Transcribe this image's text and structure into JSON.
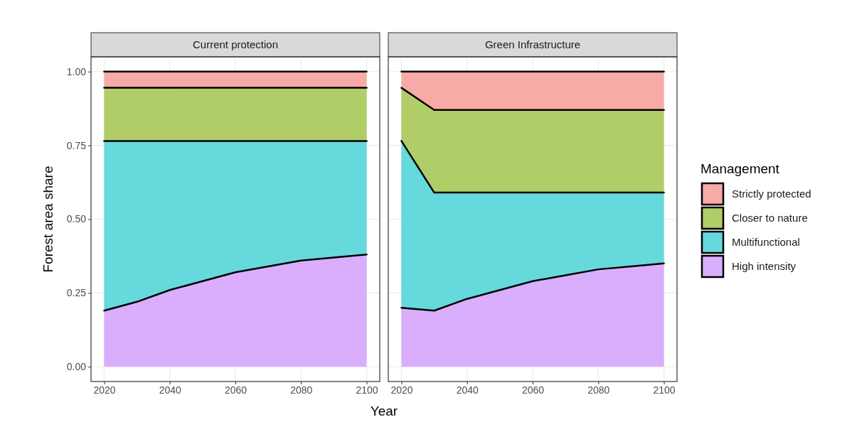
{
  "chart_data": [
    {
      "type": "area",
      "title": "Current protection",
      "xlabel": "Year",
      "ylabel": "Forest area share",
      "stacked": true,
      "x": [
        2020,
        2030,
        2040,
        2050,
        2060,
        2070,
        2080,
        2090,
        2100
      ],
      "series": [
        {
          "color": "#d9aefc",
          "values": [
            0.19,
            0.22,
            0.26,
            0.29,
            0.32,
            0.34,
            0.36,
            0.37,
            0.38
          ]
        },
        {
          "color": "#66d9dc",
          "values": [
            0.575,
            0.545,
            0.505,
            0.475,
            0.445,
            0.425,
            0.405,
            0.395,
            0.385
          ]
        },
        {
          "color": "#b0cd68",
          "values": [
            0.18,
            0.18,
            0.18,
            0.18,
            0.18,
            0.18,
            0.18,
            0.18,
            0.18
          ]
        },
        {
          "color": "#f8aba6",
          "values": [
            0.055,
            0.055,
            0.055,
            0.055,
            0.055,
            0.055,
            0.055,
            0.055,
            0.055
          ]
        }
      ],
      "xlim": [
        2016,
        2104
      ],
      "xticks": [
        2020,
        2040,
        2060,
        2080,
        2100
      ],
      "ylim": [
        -0.05,
        1.05
      ],
      "yticks": [
        {
          "value": 0,
          "label": "0.00"
        },
        {
          "value": 0.25,
          "label": "0.25"
        },
        {
          "value": 0.5,
          "label": "0.50"
        },
        {
          "value": 0.75,
          "label": "0.75"
        },
        {
          "value": 1,
          "label": "1.00"
        }
      ],
      "grid": true,
      "legend": false
    },
    {
      "type": "area",
      "title": "Green Infrastructure",
      "legend_title": "Management",
      "stacked": true,
      "x": [
        2020,
        2030,
        2040,
        2050,
        2060,
        2070,
        2080,
        2090,
        2100
      ],
      "series": [
        {
          "name": "High intensity",
          "color": "#d9aefc",
          "values": [
            0.2,
            0.19,
            0.23,
            0.26,
            0.29,
            0.31,
            0.33,
            0.34,
            0.35
          ]
        },
        {
          "name": "Multifunctional",
          "color": "#66d9dc",
          "values": [
            0.565,
            0.4,
            0.36,
            0.33,
            0.3,
            0.28,
            0.26,
            0.25,
            0.24
          ]
        },
        {
          "name": "Closer to nature",
          "color": "#b0cd68",
          "values": [
            0.18,
            0.28,
            0.28,
            0.28,
            0.28,
            0.28,
            0.28,
            0.28,
            0.28
          ]
        },
        {
          "name": "Strictly protected",
          "color": "#f8aba6",
          "values": [
            0.055,
            0.13,
            0.13,
            0.13,
            0.13,
            0.13,
            0.13,
            0.13,
            0.13
          ]
        }
      ],
      "xlim": [
        2016,
        2104
      ],
      "xticks": [
        2020,
        2040,
        2060,
        2080,
        2100
      ],
      "ylim": [
        -0.05,
        1.05
      ],
      "yticks": [
        0,
        0.25,
        0.5,
        0.75,
        1
      ],
      "grid": true,
      "legend": "right",
      "tick_labels": "x"
    }
  ]
}
